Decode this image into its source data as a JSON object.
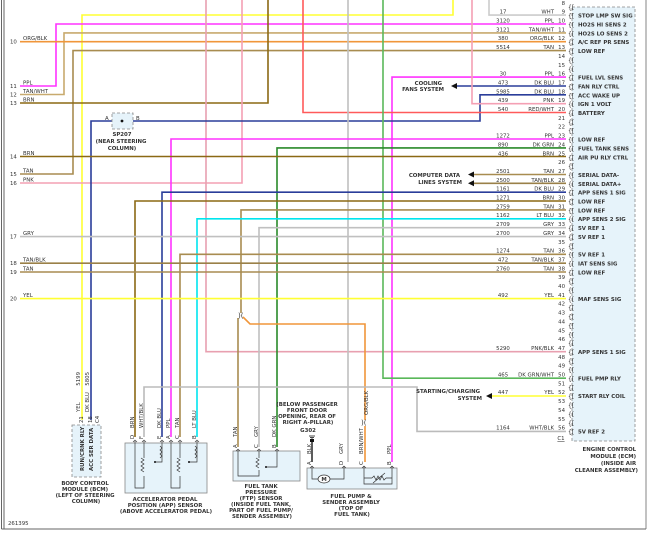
{
  "wire_colors": {
    "PPL": "#ff33ff",
    "TAN/WHT": "#c8aa6e",
    "ORG/BLK": "#f0963a",
    "TAN": "#a88c50",
    "BRN": "#8b6914",
    "DK BLU": "#2a3d9a",
    "PNK": "#f4a0b4",
    "RED/WHT": "#ff5a5a",
    "DK GRN": "#2a8a2a",
    "LT BLU": "#00e5ee",
    "GRY": "#c0c0c0",
    "YEL": "#ffff33",
    "WHT": "#cccccc",
    "PNK/BLK": "#e8a0b0",
    "DK GRN/WHT": "#5ab85a",
    "WHT/BLK": "#bbbbbb",
    "TAN/BLK": "#9a8048",
    "BLK": "#333333"
  },
  "ecm": {
    "connector": "C1",
    "title_lines": [
      "ENGINE CONTROL",
      "MODULE (ECM)",
      "(INSIDE AIR",
      "CLEANER ASSEMBLY)"
    ],
    "pins": [
      {
        "pin": "8",
        "circuit": "",
        "color": "",
        "function": ""
      },
      {
        "pin": "9",
        "circuit": "17",
        "color": "WHT",
        "function": "STOP LMP SW SIG"
      },
      {
        "pin": "10",
        "circuit": "3120",
        "color": "PPL",
        "function": "HO2S HI SENS 2"
      },
      {
        "pin": "11",
        "circuit": "3121",
        "color": "TAN/WHT",
        "function": "HO2S LO SENS 2"
      },
      {
        "pin": "12",
        "circuit": "380",
        "color": "ORG/BLK",
        "function": "A/C REF PR SENS"
      },
      {
        "pin": "13",
        "circuit": "5514",
        "color": "TAN",
        "function": "LOW REF"
      },
      {
        "pin": "14",
        "circuit": "",
        "color": "",
        "function": ""
      },
      {
        "pin": "15",
        "circuit": "",
        "color": "",
        "function": ""
      },
      {
        "pin": "16",
        "circuit": "30",
        "color": "PPL",
        "function": "FUEL LVL SENS"
      },
      {
        "pin": "17",
        "circuit": "473",
        "color": "DK BLU",
        "function": "FAN RLY CTRL"
      },
      {
        "pin": "18",
        "circuit": "5985",
        "color": "DK BLU",
        "function": "ACC WAKE UP"
      },
      {
        "pin": "19",
        "circuit": "439",
        "color": "PNK",
        "function": "IGN 1 VOLT"
      },
      {
        "pin": "20",
        "circuit": "540",
        "color": "RED/WHT",
        "function": "BATTERY"
      },
      {
        "pin": "21",
        "circuit": "",
        "color": "",
        "function": ""
      },
      {
        "pin": "22",
        "circuit": "",
        "color": "",
        "function": ""
      },
      {
        "pin": "23",
        "circuit": "1272",
        "color": "PPL",
        "function": "LOW REF"
      },
      {
        "pin": "24",
        "circuit": "890",
        "color": "DK GRN",
        "function": "FUEL TANK SENS"
      },
      {
        "pin": "25",
        "circuit": "436",
        "color": "BRN",
        "function": "AIR PU RLY CTRL"
      },
      {
        "pin": "26",
        "circuit": "",
        "color": "",
        "function": ""
      },
      {
        "pin": "27",
        "circuit": "2501",
        "color": "TAN",
        "function": "SERIAL DATA-"
      },
      {
        "pin": "28",
        "circuit": "2500",
        "color": "TAN/BLK",
        "function": "SERIAL DATA+"
      },
      {
        "pin": "29",
        "circuit": "1161",
        "color": "DK BLU",
        "function": "APP SENS 1 SIG"
      },
      {
        "pin": "30",
        "circuit": "1271",
        "color": "BRN",
        "function": "LOW REF"
      },
      {
        "pin": "31",
        "circuit": "2759",
        "color": "TAN",
        "function": "LOW REF"
      },
      {
        "pin": "32",
        "circuit": "1162",
        "color": "LT BLU",
        "function": "APP SENS 2 SIG"
      },
      {
        "pin": "33",
        "circuit": "2709",
        "color": "GRY",
        "function": "5V REF 1"
      },
      {
        "pin": "34",
        "circuit": "2700",
        "color": "GRY",
        "function": "5V REF 1"
      },
      {
        "pin": "35",
        "circuit": "",
        "color": "",
        "function": ""
      },
      {
        "pin": "36",
        "circuit": "1274",
        "color": "TAN",
        "function": "5V REF 1"
      },
      {
        "pin": "37",
        "circuit": "472",
        "color": "TAN/BLK",
        "function": "IAT SENS SIG"
      },
      {
        "pin": "38",
        "circuit": "2760",
        "color": "TAN",
        "function": "LOW REF"
      },
      {
        "pin": "39",
        "circuit": "",
        "color": "",
        "function": ""
      },
      {
        "pin": "40",
        "circuit": "",
        "color": "",
        "function": ""
      },
      {
        "pin": "41",
        "circuit": "492",
        "color": "YEL",
        "function": "MAF SENS SIG"
      },
      {
        "pin": "42",
        "circuit": "",
        "color": "",
        "function": ""
      },
      {
        "pin": "43",
        "circuit": "",
        "color": "",
        "function": ""
      },
      {
        "pin": "44",
        "circuit": "",
        "color": "",
        "function": ""
      },
      {
        "pin": "45",
        "circuit": "",
        "color": "",
        "function": ""
      },
      {
        "pin": "46",
        "circuit": "",
        "color": "",
        "function": ""
      },
      {
        "pin": "47",
        "circuit": "5290",
        "color": "PNK/BLK",
        "function": "APP SENS 1 SIG"
      },
      {
        "pin": "48",
        "circuit": "",
        "color": "",
        "function": ""
      },
      {
        "pin": "49",
        "circuit": "",
        "color": "",
        "function": ""
      },
      {
        "pin": "50",
        "circuit": "465",
        "color": "DK GRN/WHT",
        "function": "FUEL PMP RLY"
      },
      {
        "pin": "51",
        "circuit": "",
        "color": "",
        "function": ""
      },
      {
        "pin": "52",
        "circuit": "447",
        "color": "YEL",
        "function": "START RLY COIL"
      },
      {
        "pin": "53",
        "circuit": "",
        "color": "",
        "function": ""
      },
      {
        "pin": "54",
        "circuit": "",
        "color": "",
        "function": ""
      },
      {
        "pin": "55",
        "circuit": "",
        "color": "",
        "function": ""
      },
      {
        "pin": "56",
        "circuit": "1164",
        "color": "WHT/BLK",
        "function": "5V REF 2"
      }
    ]
  },
  "left_wires": [
    {
      "num": "10",
      "color": "ORG/BLK"
    },
    {
      "num": "11",
      "color": "PPL"
    },
    {
      "num": "12",
      "color": "TAN/WHT"
    },
    {
      "num": "13",
      "color": "BRN"
    },
    {
      "num": "14",
      "color": "BRN"
    },
    {
      "num": "15",
      "color": "TAN"
    },
    {
      "num": "16",
      "color": "PNK"
    },
    {
      "num": "17",
      "color": "GRY"
    },
    {
      "num": "18",
      "color": "TAN/BLK"
    },
    {
      "num": "19",
      "color": "TAN"
    },
    {
      "num": "20",
      "color": "YEL"
    }
  ],
  "splice": {
    "id": "SP207",
    "pin_a": "A",
    "pin_b": "B",
    "location_lines": [
      "(NEAR STEERING",
      "COLUMN)"
    ]
  },
  "destinations": {
    "cooling_fans": [
      "COOLING",
      "FANS SYSTEM"
    ],
    "computer_data": [
      "COMPUTER DATA",
      "LINES SYSTEM"
    ],
    "starting_charging": [
      "STARTING/CHARGING",
      "SYSTEM"
    ]
  },
  "bcm": {
    "title_lines": [
      "BODY CONTROL",
      "MODULE (BCM)",
      "(LEFT OF STEERING",
      "COLUMN)"
    ],
    "circuits": [
      "5199",
      "5805"
    ],
    "pins": [
      {
        "pin": "21",
        "color": "YEL",
        "function": "RUN/CRNK RLY"
      },
      {
        "pin": "18",
        "color": "DK BLU",
        "function": "ACC SER DATA"
      },
      {
        "pin": "C4",
        "color": "",
        "function": ""
      }
    ]
  },
  "app_sensor": {
    "title_lines": [
      "ACCELERATOR PEDAL",
      "POSITION (APP) SENSOR",
      "(ABOVE ACCELERATOR PEDAL)"
    ],
    "pins": [
      {
        "pin": "D",
        "color": "BRN"
      },
      {
        "pin": "F",
        "color": "WHT/BLK"
      },
      {
        "pin": "E",
        "color": "DK BLU"
      },
      {
        "pin": "A",
        "color": "PPL"
      },
      {
        "pin": "C",
        "color": "TAN"
      },
      {
        "pin": "B",
        "color": "LT BLU"
      }
    ]
  },
  "ftp_sensor": {
    "title_lines": [
      "FUEL TANK",
      "PRESSURE",
      "(FTP) SENSOR",
      "(INSIDE FUEL TANK,",
      "PART OF FUEL PUMP/",
      "SENDER ASSEMBLY)"
    ],
    "pins": [
      {
        "pin": "A",
        "color": "TAN"
      },
      {
        "pin": "C",
        "color": "GRY"
      },
      {
        "pin": "B",
        "color": "DK GRN"
      }
    ]
  },
  "fuel_pump": {
    "title_lines": [
      "FUEL PUMP &",
      "SENDER ASSEMBLY",
      "(TOP OF",
      "FUEL TANK)"
    ],
    "motor_label": "M",
    "pins": [
      {
        "pin": "A",
        "color": "BLK"
      },
      {
        "pin": "D",
        "color": "GRY"
      },
      {
        "pin": "C",
        "color": "BRN/WHT"
      },
      {
        "pin": "B",
        "color": "PPL"
      }
    ],
    "inline_color": "ORG/BLK"
  },
  "ground": {
    "id": "G302",
    "location_lines": [
      "(BELOW PASSENGER",
      "FRONT DOOR",
      "OPENING, REAR OF",
      "RIGHT A-PILLAR)"
    ]
  },
  "figure_id": "261395"
}
